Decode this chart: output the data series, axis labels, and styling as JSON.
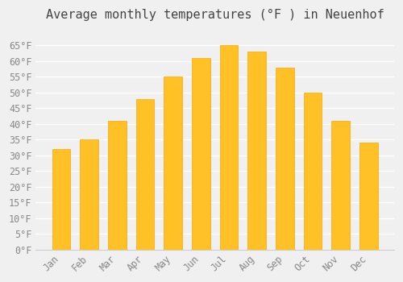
{
  "title": "Average monthly temperatures (°F ) in Neuenhof",
  "months": [
    "Jan",
    "Feb",
    "Mar",
    "Apr",
    "May",
    "Jun",
    "Jul",
    "Aug",
    "Sep",
    "Oct",
    "Nov",
    "Dec"
  ],
  "values": [
    32,
    35,
    41,
    48,
    55,
    61,
    65,
    63,
    58,
    50,
    41,
    34
  ],
  "bar_color_face": "#FFC125",
  "bar_color_edge": "#FFD700",
  "bar_edge_color": "#FFA500",
  "ylim": [
    0,
    70
  ],
  "yticks": [
    0,
    5,
    10,
    15,
    20,
    25,
    30,
    35,
    40,
    45,
    50,
    55,
    60,
    65
  ],
  "ytick_labels": [
    "0°F",
    "5°F",
    "10°F",
    "15°F",
    "20°F",
    "25°F",
    "30°F",
    "35°F",
    "40°F",
    "45°F",
    "50°F",
    "55°F",
    "60°F",
    "65°F"
  ],
  "background_color": "#f0f0f0",
  "grid_color": "#ffffff",
  "title_fontsize": 11,
  "tick_fontsize": 8.5,
  "font_family": "monospace"
}
